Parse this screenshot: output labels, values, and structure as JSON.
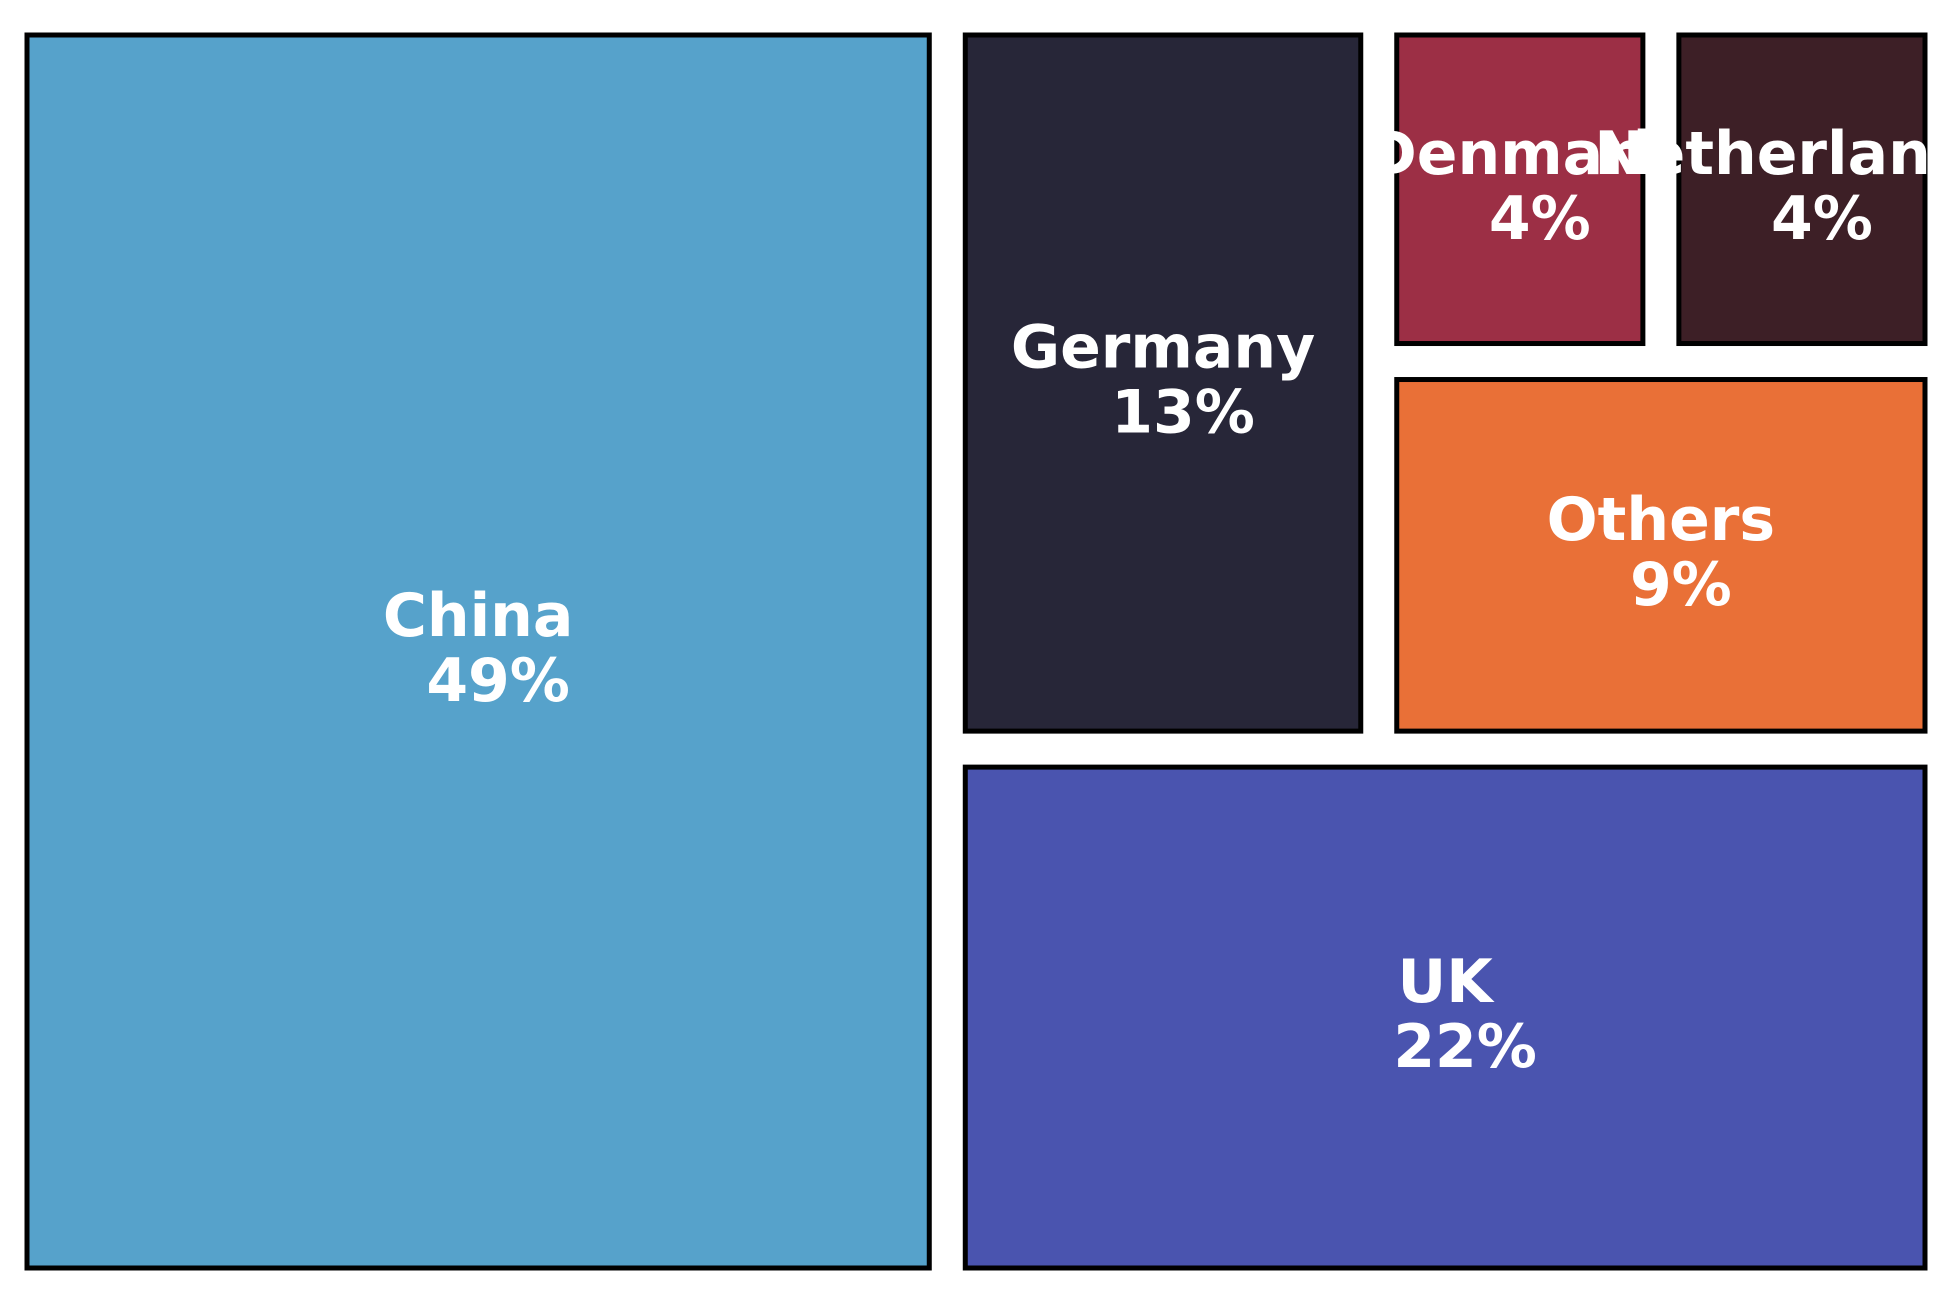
{
  "chart_data": {
    "type": "treemap",
    "categories": [
      "China",
      "UK",
      "Germany",
      "Others",
      "Denmark",
      "Netherlands"
    ],
    "values": [
      49,
      22,
      13,
      9,
      4,
      4
    ],
    "value_labels": [
      "49%",
      "22%",
      "13%",
      "9%",
      "4%",
      "4%"
    ],
    "colors": [
      "#56a2cb",
      "#4a54af",
      "#272638",
      "#e97037",
      "#9c2f45",
      "#3d1f26"
    ]
  }
}
